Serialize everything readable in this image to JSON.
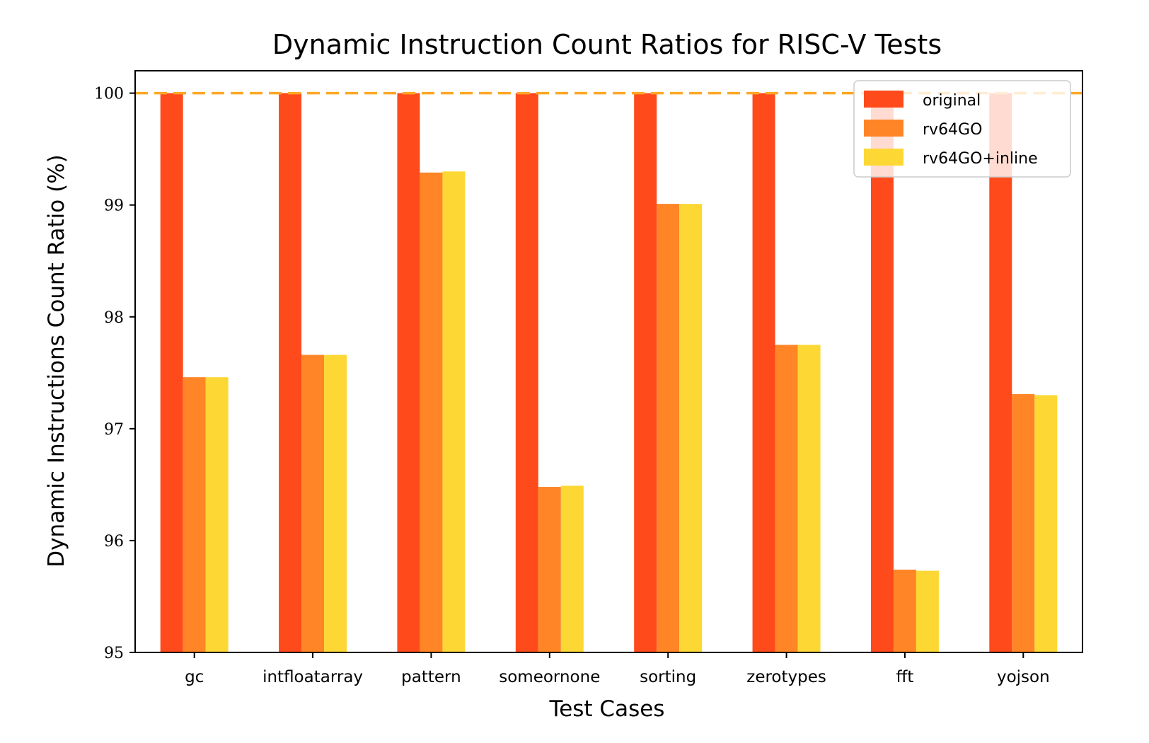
{
  "chart_data": {
    "type": "bar",
    "title": "Dynamic Instruction Count Ratios for RISC-V Tests",
    "xlabel": "Test Cases",
    "ylabel": "Dynamic Instructions Count Ratio (%)",
    "ylim": [
      95,
      100.2
    ],
    "yticks": [
      95,
      96,
      97,
      98,
      99,
      100
    ],
    "grid": false,
    "legend_position": "top-right",
    "reference_line": {
      "y": 100,
      "style": "dashed",
      "color": "#ffa726"
    },
    "categories": [
      "gc",
      "intfloatarray",
      "pattern",
      "someornone",
      "sorting",
      "zerotypes",
      "fft",
      "yojson"
    ],
    "series": [
      {
        "name": "original",
        "color": "#ff4a1c",
        "values": [
          100,
          100,
          100,
          100,
          100,
          100,
          100,
          100
        ]
      },
      {
        "name": "rv64GO",
        "color": "#ff8526",
        "values": [
          97.46,
          97.66,
          99.29,
          96.48,
          99.01,
          97.75,
          95.74,
          97.31
        ]
      },
      {
        "name": "rv64GO+inline",
        "color": "#fdd835",
        "values": [
          97.46,
          97.66,
          99.3,
          96.49,
          99.01,
          97.75,
          95.73,
          97.3
        ]
      }
    ]
  }
}
